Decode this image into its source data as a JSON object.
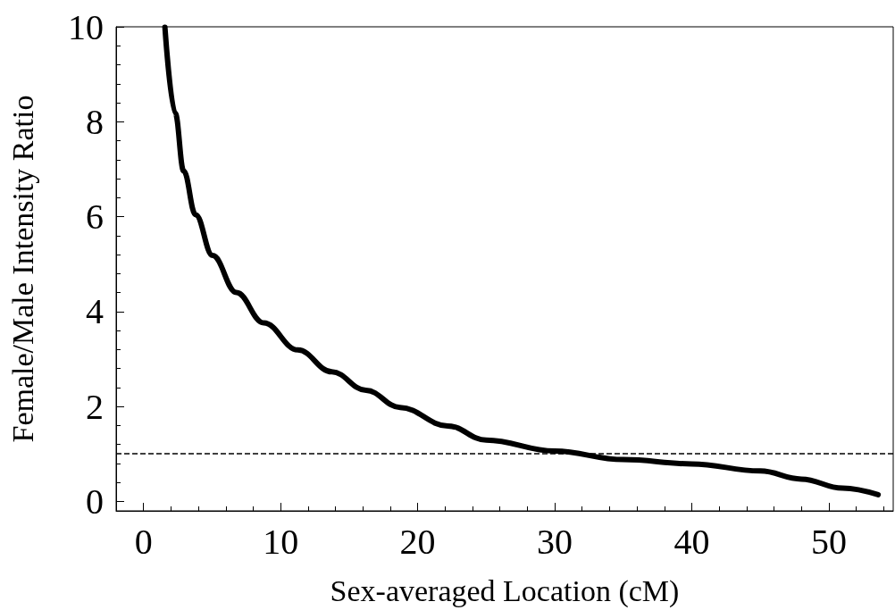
{
  "chart_data": {
    "type": "line",
    "xlabel": "Sex-averaged Location (cM)",
    "ylabel": "Female/Male Intensity Ratio",
    "x": [
      1.56,
      2.31,
      2.93,
      3.8,
      5.04,
      6.78,
      8.77,
      11.26,
      13.74,
      16.23,
      18.72,
      22.2,
      25,
      30,
      35,
      40,
      45,
      48,
      51,
      53.6
    ],
    "series": [
      {
        "color": "#000000",
        "values": [
          9.99,
          8.18,
          6.96,
          6.04,
          5.18,
          4.4,
          3.76,
          3.19,
          2.73,
          2.34,
          1.98,
          1.59,
          1.29,
          1.06,
          0.88,
          0.79,
          0.64,
          0.47,
          0.28,
          0.14
        ]
      }
    ],
    "xlim": [
      -2,
      54.7
    ],
    "xticks": [
      0,
      10,
      20,
      30,
      40,
      50
    ],
    "ylim": [
      -0.2,
      10
    ],
    "yticks": [
      0,
      2,
      4,
      6,
      8,
      10
    ],
    "ref_lines": [
      {
        "axis": "y",
        "value": 1,
        "color": "#000000",
        "line_style": "dashed"
      }
    ],
    "grid": false,
    "marker": "none",
    "line_style": "solid"
  }
}
